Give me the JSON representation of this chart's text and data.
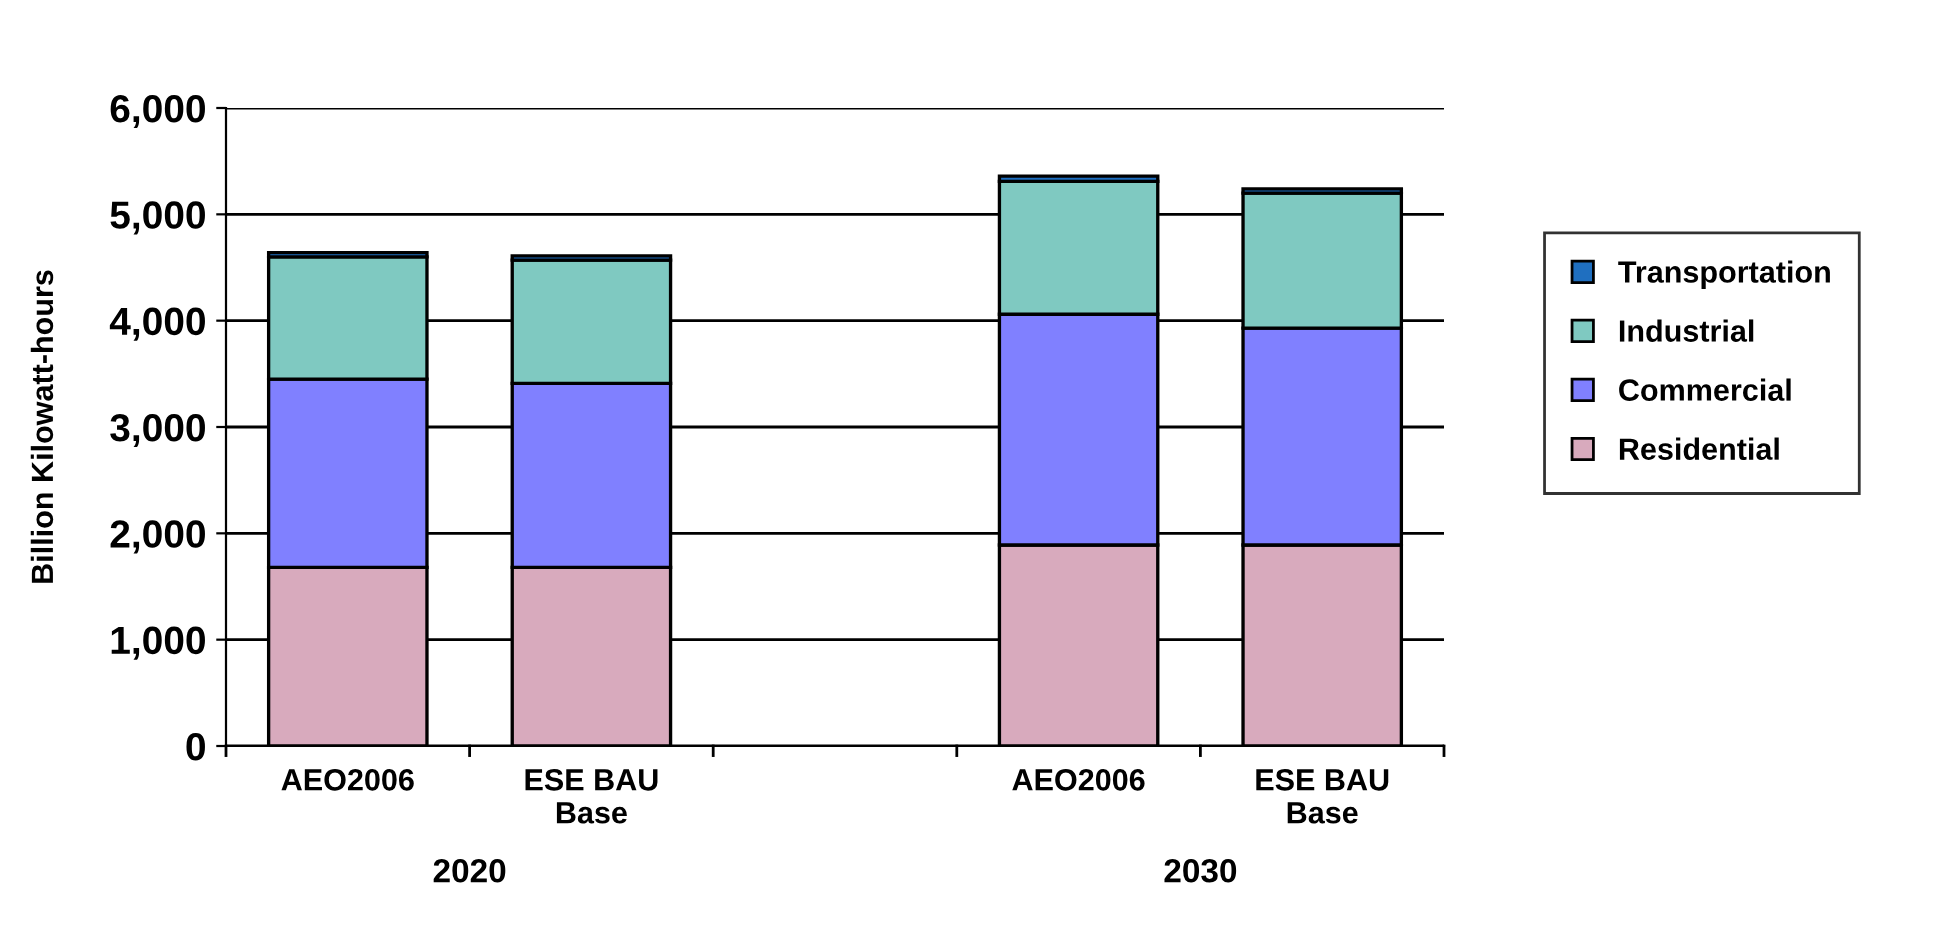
{
  "chart_data": {
    "type": "bar",
    "stacked": true,
    "ylabel": "Billion Kilowatt-hours",
    "categories": [
      "AEO2006",
      "ESE BAU\nBase",
      null,
      "AEO2006",
      "ESE BAU\nBase"
    ],
    "series": [
      {
        "name": "Residential",
        "color": "#d8aabd",
        "values": [
          1680,
          1680,
          null,
          1890,
          1890
        ]
      },
      {
        "name": "Commercial",
        "color": "#8080ff",
        "values": [
          1770,
          1730,
          null,
          2170,
          2040
        ]
      },
      {
        "name": "Industrial",
        "color": "#7fc9c1",
        "values": [
          1150,
          1160,
          null,
          1250,
          1270
        ]
      },
      {
        "name": "Transportation",
        "color": "#1f6fc0",
        "values": [
          40,
          40,
          null,
          50,
          40
        ]
      }
    ],
    "ylim": [
      0,
      6000
    ],
    "yticks": [
      {
        "value": 0,
        "label": "0"
      },
      {
        "value": 1000,
        "label": "1,000"
      },
      {
        "value": 2000,
        "label": "2,000"
      },
      {
        "value": 3000,
        "label": "3,000"
      },
      {
        "value": 4000,
        "label": "4,000"
      },
      {
        "value": 5000,
        "label": "5,000"
      },
      {
        "value": 6000,
        "label": "6,000"
      }
    ],
    "grid": "y",
    "legend": "right",
    "annotations": [
      "2020",
      "2030"
    ]
  }
}
